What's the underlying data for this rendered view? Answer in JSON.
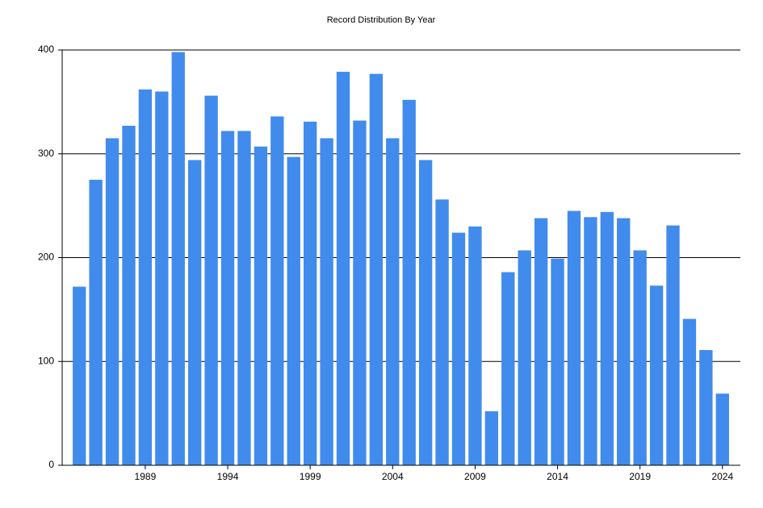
{
  "chart_data": {
    "type": "bar",
    "title": "Record Distribution By Year",
    "categories": [
      null,
      null,
      null,
      null,
      "1989",
      null,
      null,
      null,
      null,
      "1994",
      null,
      null,
      null,
      null,
      "1999",
      null,
      null,
      null,
      null,
      "2004",
      null,
      null,
      null,
      null,
      "2009",
      null,
      null,
      null,
      null,
      "2014",
      null,
      null,
      null,
      null,
      "2019",
      null,
      null,
      null,
      null,
      "2024"
    ],
    "values": [
      172,
      275,
      315,
      327,
      362,
      360,
      398,
      294,
      356,
      322,
      322,
      307,
      336,
      297,
      331,
      315,
      379,
      332,
      377,
      315,
      352,
      294,
      256,
      224,
      230,
      52,
      186,
      207,
      238,
      199,
      245,
      239,
      244,
      238,
      207,
      173,
      231,
      141,
      111,
      69
    ],
    "color": "#418bed",
    "ylim": [
      0,
      400
    ],
    "yticks": [
      0,
      100,
      200,
      300,
      400
    ],
    "grid": true
  }
}
